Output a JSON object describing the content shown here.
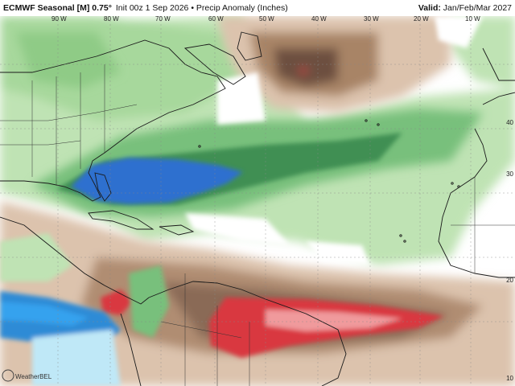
{
  "header": {
    "title": "ECMWF Seasonal [M] 0.75°",
    "init": "Init 00z 1 Sep 2026",
    "product": "Precip Anomaly (Inches)",
    "valid_label": "Valid:",
    "valid_value": "Jan/Feb/Mar 2027"
  },
  "longitude_labels": [
    "90 W",
    "80 W",
    "70 W",
    "60 W",
    "50 W",
    "40 W",
    "30 W",
    "20 W",
    "10 W"
  ],
  "latitude_labels": [
    "40",
    "30",
    "20",
    "10"
  ],
  "logo": {
    "text": "WeatherBELL",
    "icon": "weatherbell-logo-icon"
  },
  "colors": {
    "wet_light": "#bfe3b4",
    "wet_mid": "#78c07c",
    "wet_dark": "#3f8f52",
    "very_wet": "#2e6fcf",
    "dry_light": "#dcc3ad",
    "dry_mid": "#a88466",
    "dry_dark": "#6d5040",
    "very_dry": "#d9383f",
    "ocean_neutral": "#ffffff"
  }
}
